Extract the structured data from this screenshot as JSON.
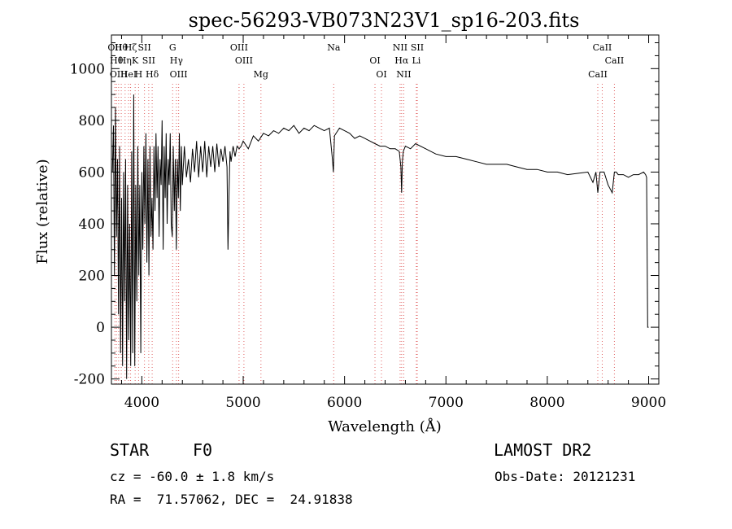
{
  "chart_data": {
    "type": "line",
    "title": "spec-56293-VB073N23V1_sp16-203.fits",
    "xlabel": "Wavelength (Å)",
    "ylabel": "Flux (relative)",
    "xlim": [
      3700,
      9100
    ],
    "ylim": [
      -220,
      1130
    ],
    "x_ticks": [
      4000,
      5000,
      6000,
      7000,
      8000,
      9000
    ],
    "y_ticks": [
      -200,
      0,
      200,
      400,
      600,
      800,
      1000
    ],
    "line_color": "#000000",
    "marker_color": "#e06060",
    "series": [
      {
        "x": [
          3710,
          3720,
          3730,
          3740,
          3750,
          3760,
          3770,
          3780,
          3790,
          3800,
          3810,
          3820,
          3830,
          3840,
          3850,
          3860,
          3870,
          3880,
          3890,
          3900,
          3910,
          3920,
          3930,
          3940,
          3950,
          3960,
          3970,
          3980,
          3990,
          4000,
          4010,
          4020,
          4030,
          4040,
          4050,
          4060,
          4070,
          4080,
          4090,
          4100,
          4110,
          4120,
          4130,
          4140,
          4150,
          4160,
          4170,
          4180,
          4190,
          4200,
          4210,
          4220,
          4230,
          4240,
          4250,
          4260,
          4270,
          4280,
          4290,
          4300,
          4310,
          4320,
          4330,
          4340,
          4350,
          4360,
          4370,
          4380,
          4390,
          4400,
          4420,
          4440,
          4460,
          4480,
          4500,
          4520,
          4540,
          4560,
          4580,
          4600,
          4620,
          4640,
          4660,
          4680,
          4700,
          4720,
          4740,
          4760,
          4780,
          4800,
          4820,
          4840,
          4850,
          4860,
          4870,
          4880,
          4900,
          4920,
          4940,
          4960,
          4980,
          5000,
          5050,
          5100,
          5150,
          5200,
          5250,
          5300,
          5350,
          5400,
          5450,
          5500,
          5550,
          5600,
          5650,
          5700,
          5750,
          5800,
          5850,
          5880,
          5890,
          5900,
          5950,
          6000,
          6050,
          6100,
          6150,
          6200,
          6250,
          6300,
          6350,
          6400,
          6450,
          6500,
          6540,
          6556,
          6563,
          6570,
          6580,
          6600,
          6650,
          6700,
          6800,
          6900,
          7000,
          7100,
          7200,
          7300,
          7400,
          7500,
          7600,
          7700,
          7800,
          7900,
          8000,
          8100,
          8200,
          8300,
          8400,
          8450,
          8480,
          8498,
          8520,
          8542,
          8560,
          8600,
          8640,
          8662,
          8680,
          8700,
          8750,
          8800,
          8850,
          8900,
          8950,
          8970,
          8980,
          8990,
          9000
        ],
        "y": [
          600,
          780,
          200,
          850,
          350,
          650,
          50,
          700,
          -100,
          500,
          -150,
          600,
          100,
          650,
          -200,
          550,
          -50,
          400,
          -150,
          680,
          -100,
          900,
          -150,
          550,
          100,
          700,
          200,
          550,
          -100,
          600,
          300,
          700,
          400,
          750,
          250,
          650,
          200,
          700,
          350,
          500,
          300,
          700,
          450,
          750,
          500,
          700,
          350,
          650,
          550,
          800,
          300,
          700,
          500,
          750,
          400,
          650,
          550,
          750,
          400,
          350,
          700,
          450,
          650,
          300,
          650,
          500,
          750,
          450,
          700,
          550,
          700,
          580,
          650,
          560,
          690,
          600,
          720,
          580,
          700,
          600,
          720,
          580,
          700,
          620,
          700,
          600,
          710,
          620,
          690,
          640,
          700,
          620,
          300,
          520,
          680,
          640,
          700,
          660,
          700,
          690,
          700,
          720,
          690,
          740,
          720,
          750,
          740,
          760,
          750,
          770,
          760,
          780,
          750,
          770,
          760,
          780,
          770,
          760,
          770,
          650,
          600,
          740,
          770,
          760,
          750,
          730,
          740,
          730,
          720,
          710,
          700,
          700,
          690,
          690,
          680,
          620,
          520,
          640,
          680,
          700,
          690,
          710,
          690,
          670,
          660,
          660,
          650,
          640,
          630,
          630,
          630,
          620,
          610,
          610,
          600,
          600,
          590,
          595,
          600,
          560,
          600,
          520,
          600,
          600,
          600,
          550,
          520,
          600,
          600,
          590,
          590,
          580,
          590,
          590,
          600,
          590,
          580,
          0,
          0
        ]
      }
    ],
    "line_markers": [
      {
        "x": 3734,
        "label": "OII"
      },
      {
        "x": 3750,
        "label": "Hθ"
      },
      {
        "x": 3771,
        "label": "OIII"
      },
      {
        "x": 3797,
        "label": "Hθ"
      },
      {
        "x": 3835,
        "label": "Hη"
      },
      {
        "x": 3869,
        "label": "HeI"
      },
      {
        "x": 3889,
        "label": "Hζ"
      },
      {
        "x": 3934,
        "label": "K"
      },
      {
        "x": 3968,
        "label": "H"
      },
      {
        "x": 4026,
        "label": "SII"
      },
      {
        "x": 4068,
        "label": "SII"
      },
      {
        "x": 4102,
        "label": "Hδ"
      },
      {
        "x": 4304,
        "label": "G"
      },
      {
        "x": 4341,
        "label": "Hγ"
      },
      {
        "x": 4363,
        "label": "OIII"
      },
      {
        "x": 4959,
        "label": "OIII"
      },
      {
        "x": 5007,
        "label": "OIII"
      },
      {
        "x": 5175,
        "label": "Mg"
      },
      {
        "x": 5893,
        "label": "Na"
      },
      {
        "x": 6300,
        "label": "OI"
      },
      {
        "x": 6364,
        "label": "OI"
      },
      {
        "x": 6548,
        "label": "NII"
      },
      {
        "x": 6563,
        "label": "Hα"
      },
      {
        "x": 6584,
        "label": "NII"
      },
      {
        "x": 6717,
        "label": "SII"
      },
      {
        "x": 6708,
        "label": "Li"
      },
      {
        "x": 8498,
        "label": "CaII"
      },
      {
        "x": 8542,
        "label": "CaII"
      },
      {
        "x": 8662,
        "label": "CaII"
      }
    ]
  },
  "info": {
    "object_class": "STAR",
    "subclass": "F0",
    "survey": "LAMOST DR2",
    "cz": "cz = -60.0 ± 1.8 km/s",
    "obs_date": "Obs-Date: 20121231",
    "coords": "RA =  71.57062, DEC =  24.91838"
  }
}
